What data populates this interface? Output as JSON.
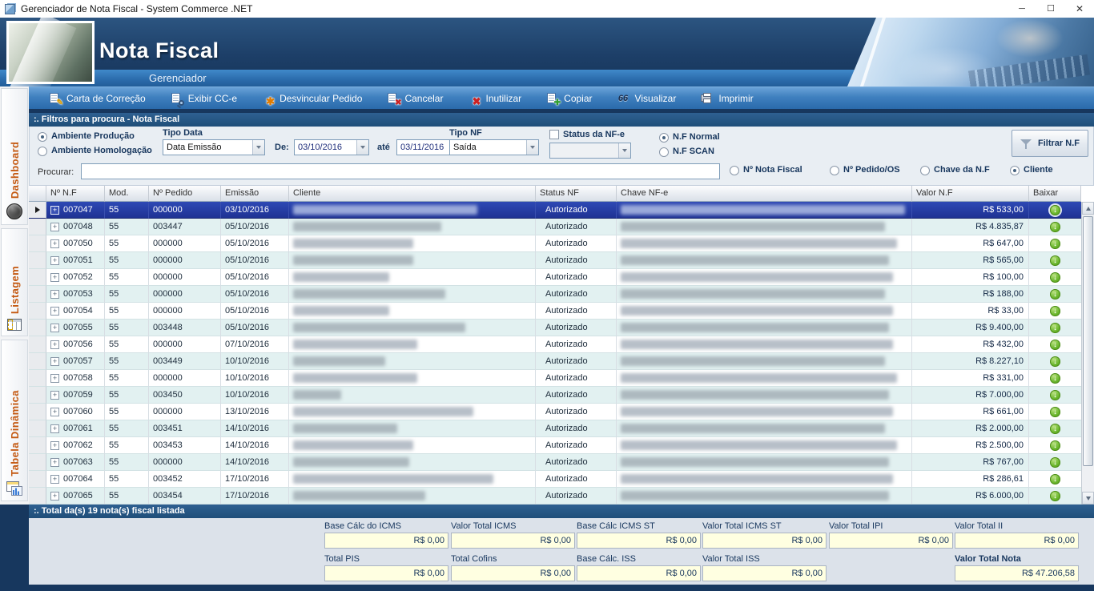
{
  "window": {
    "title": "Gerenciador de Nota Fiscal   -   System Commerce .NET",
    "controls": {
      "minimize": "─",
      "maximize": "☐",
      "close": "✕"
    }
  },
  "banner": {
    "title": "Nota Fiscal",
    "subtitle": "Gerenciador"
  },
  "toolbar": {
    "items": [
      {
        "id": "carta-de-correcao",
        "label": "Carta de Correção",
        "icon": "doc-pencil-icon",
        "kind": "doc",
        "glyph": "✎",
        "color": "#D69A00"
      },
      {
        "id": "exibir-cce",
        "label": "Exibir CC-e",
        "icon": "doc-magnifier-icon",
        "kind": "mag",
        "glyph": "",
        "color": "#2F527C"
      },
      {
        "id": "desvincular-pedido",
        "label": "Desvincular Pedido",
        "icon": "cart-star-icon",
        "kind": "plain",
        "glyph": "✱",
        "color": "#E07B00"
      },
      {
        "id": "cancelar",
        "label": "Cancelar",
        "icon": "doc-cancel-icon",
        "kind": "doc",
        "glyph": "✖",
        "color": "#CC2222"
      },
      {
        "id": "inutilizar",
        "label": "Inutilizar",
        "icon": "doc-invalidate-icon",
        "kind": "plain",
        "glyph": "✖",
        "color": "#CC2222"
      },
      {
        "id": "copiar",
        "label": "Copiar",
        "icon": "doc-copy-icon",
        "kind": "doc",
        "glyph": "✚",
        "color": "#2F9E2F"
      },
      {
        "id": "visualizar",
        "label": "Visualizar",
        "icon": "binoculars-icon",
        "kind": "bino",
        "glyph": "66",
        "color": "#1d2f4d"
      },
      {
        "id": "imprimir",
        "label": "Imprimir",
        "icon": "printer-icon",
        "kind": "print",
        "glyph": "",
        "color": "#5c6a80"
      }
    ]
  },
  "sidebar": {
    "tabs": [
      {
        "id": "dashboard",
        "label": "Dashboard",
        "icon": "gauge-wheel-icon"
      },
      {
        "id": "listagem",
        "label": "Listagem",
        "icon": "list-grid-icon"
      },
      {
        "id": "tabela-dinamica",
        "label": "Tabela Dinâmica",
        "icon": "pivot-chart-icon"
      }
    ]
  },
  "filters": {
    "header": ":. Filtros para procura - Nota Fiscal",
    "ambiente": {
      "options": [
        "Ambiente Produção",
        "Ambiente Homologação"
      ],
      "selected": 0
    },
    "tipo_data": {
      "label": "Tipo Data",
      "value": "Data Emissão"
    },
    "de": {
      "label": "De:",
      "value": "03/10/2016"
    },
    "ate": {
      "label": "até",
      "value": "03/11/2016"
    },
    "tipo_nf": {
      "label": "Tipo NF",
      "value": "Saída"
    },
    "status_nfe": {
      "label": "Status da NF-e",
      "checked": false,
      "value": ""
    },
    "nf_type": {
      "options": [
        "N.F Normal",
        "N.F SCAN"
      ],
      "selected": 0
    },
    "filtrar_label": "Filtrar N.F",
    "procurar_label": "Procurar:",
    "procurar_value": "",
    "search_by": {
      "options": [
        "Nº Nota Fiscal",
        "Nº Pedido/OS",
        "Chave da N.F",
        "Cliente"
      ],
      "selected": 3
    }
  },
  "table": {
    "columns": [
      "",
      "Nº N.F",
      "Mod.",
      "Nº Pedido",
      "Emissão",
      "Cliente",
      "Status NF",
      "Chave NF-e",
      "Valor N.F",
      "Baixar"
    ],
    "rows": [
      {
        "nf": "007047",
        "mod": "55",
        "ped": "000000",
        "em": "03/10/2016",
        "st": "Autorizado",
        "val": "R$ 533,00",
        "sel": true,
        "bc": 230,
        "bk": 355
      },
      {
        "nf": "007048",
        "mod": "55",
        "ped": "003447",
        "em": "05/10/2016",
        "st": "Autorizado",
        "val": "R$ 4.835,87",
        "sel": false,
        "bc": 185,
        "bk": 330
      },
      {
        "nf": "007050",
        "mod": "55",
        "ped": "000000",
        "em": "05/10/2016",
        "st": "Autorizado",
        "val": "R$ 647,00",
        "sel": false,
        "bc": 150,
        "bk": 345
      },
      {
        "nf": "007051",
        "mod": "55",
        "ped": "000000",
        "em": "05/10/2016",
        "st": "Autorizado",
        "val": "R$ 565,00",
        "sel": false,
        "bc": 150,
        "bk": 335
      },
      {
        "nf": "007052",
        "mod": "55",
        "ped": "000000",
        "em": "05/10/2016",
        "st": "Autorizado",
        "val": "R$ 100,00",
        "sel": false,
        "bc": 120,
        "bk": 340
      },
      {
        "nf": "007053",
        "mod": "55",
        "ped": "000000",
        "em": "05/10/2016",
        "st": "Autorizado",
        "val": "R$ 188,00",
        "sel": false,
        "bc": 190,
        "bk": 330
      },
      {
        "nf": "007054",
        "mod": "55",
        "ped": "000000",
        "em": "05/10/2016",
        "st": "Autorizado",
        "val": "R$ 33,00",
        "sel": false,
        "bc": 120,
        "bk": 340
      },
      {
        "nf": "007055",
        "mod": "55",
        "ped": "003448",
        "em": "05/10/2016",
        "st": "Autorizado",
        "val": "R$ 9.400,00",
        "sel": false,
        "bc": 215,
        "bk": 335
      },
      {
        "nf": "007056",
        "mod": "55",
        "ped": "000000",
        "em": "07/10/2016",
        "st": "Autorizado",
        "val": "R$ 432,00",
        "sel": false,
        "bc": 155,
        "bk": 340
      },
      {
        "nf": "007057",
        "mod": "55",
        "ped": "003449",
        "em": "10/10/2016",
        "st": "Autorizado",
        "val": "R$ 8.227,10",
        "sel": false,
        "bc": 115,
        "bk": 330
      },
      {
        "nf": "007058",
        "mod": "55",
        "ped": "000000",
        "em": "10/10/2016",
        "st": "Autorizado",
        "val": "R$ 331,00",
        "sel": false,
        "bc": 155,
        "bk": 345
      },
      {
        "nf": "007059",
        "mod": "55",
        "ped": "003450",
        "em": "10/10/2016",
        "st": "Autorizado",
        "val": "R$ 7.000,00",
        "sel": false,
        "bc": 60,
        "bk": 335
      },
      {
        "nf": "007060",
        "mod": "55",
        "ped": "000000",
        "em": "13/10/2016",
        "st": "Autorizado",
        "val": "R$ 661,00",
        "sel": false,
        "bc": 225,
        "bk": 340
      },
      {
        "nf": "007061",
        "mod": "55",
        "ped": "003451",
        "em": "14/10/2016",
        "st": "Autorizado",
        "val": "R$ 2.000,00",
        "sel": false,
        "bc": 130,
        "bk": 330
      },
      {
        "nf": "007062",
        "mod": "55",
        "ped": "003453",
        "em": "14/10/2016",
        "st": "Autorizado",
        "val": "R$ 2.500,00",
        "sel": false,
        "bc": 150,
        "bk": 345
      },
      {
        "nf": "007063",
        "mod": "55",
        "ped": "000000",
        "em": "14/10/2016",
        "st": "Autorizado",
        "val": "R$ 767,00",
        "sel": false,
        "bc": 145,
        "bk": 335
      },
      {
        "nf": "007064",
        "mod": "55",
        "ped": "003452",
        "em": "17/10/2016",
        "st": "Autorizado",
        "val": "R$ 286,61",
        "sel": false,
        "bc": 250,
        "bk": 340
      },
      {
        "nf": "007065",
        "mod": "55",
        "ped": "003454",
        "em": "17/10/2016",
        "st": "Autorizado",
        "val": "R$ 6.000,00",
        "sel": false,
        "bc": 165,
        "bk": 335
      }
    ]
  },
  "footer": {
    "header": ":. Total da(s) 19 nota(s) fiscal listada",
    "fields": [
      {
        "label": "Base Cálc do ICMS",
        "value": "R$ 0,00",
        "row": 1,
        "col": 1,
        "bold": false
      },
      {
        "label": "Valor Total ICMS",
        "value": "R$ 0,00",
        "row": 1,
        "col": 2,
        "bold": false
      },
      {
        "label": "Base Cálc ICMS ST",
        "value": "R$ 0,00",
        "row": 1,
        "col": 3,
        "bold": false
      },
      {
        "label": "Valor Total ICMS ST",
        "value": "R$ 0,00",
        "row": 1,
        "col": 4,
        "bold": false
      },
      {
        "label": "Valor Total IPI",
        "value": "R$ 0,00",
        "row": 1,
        "col": 5,
        "bold": false
      },
      {
        "label": "Valor Total II",
        "value": "R$ 0,00",
        "row": 1,
        "col": 6,
        "bold": false
      },
      {
        "label": "Total PIS",
        "value": "R$ 0,00",
        "row": 2,
        "col": 1,
        "bold": false
      },
      {
        "label": "Total Cofins",
        "value": "R$ 0,00",
        "row": 2,
        "col": 2,
        "bold": false
      },
      {
        "label": "Base Cálc. ISS",
        "value": "R$ 0,00",
        "row": 2,
        "col": 3,
        "bold": false
      },
      {
        "label": "Valor Total ISS",
        "value": "R$ 0,00",
        "row": 2,
        "col": 4,
        "bold": false
      },
      {
        "label": "Valor Total Nota",
        "value": "R$ 47.206,58",
        "row": 2,
        "col": 6,
        "bold": true
      }
    ]
  },
  "colors": {
    "header_navy": "#17375E",
    "panel_head_blue": "#1F4E79",
    "toolbar_blue": "#3A7DBD",
    "selection_blue": "#2438A6",
    "sidebar_tab_orange": "#C45911",
    "download_green": "#63B22A",
    "totals_field_yellow": "#FFFFE1"
  }
}
